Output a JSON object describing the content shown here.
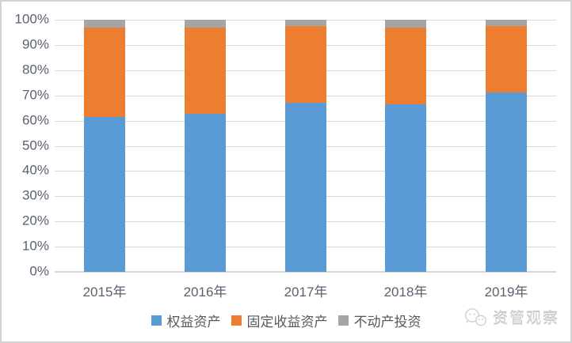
{
  "chart_data": {
    "type": "bar",
    "stacked": true,
    "percent_stacked": true,
    "title": "",
    "xlabel": "",
    "ylabel": "",
    "categories": [
      "2015年",
      "2016年",
      "2017年",
      "2018年",
      "2019年"
    ],
    "series": [
      {
        "name": "权益资产",
        "color": "#5B9BD5",
        "values": [
          61.5,
          62.8,
          67.0,
          66.4,
          71.2
        ]
      },
      {
        "name": "固定收益资产",
        "color": "#ED7D31",
        "values": [
          35.4,
          34.1,
          30.6,
          30.5,
          26.2
        ]
      },
      {
        "name": "不动产投资",
        "color": "#A5A5A5",
        "values": [
          3.1,
          3.1,
          2.4,
          3.1,
          2.6
        ]
      }
    ],
    "ylim": [
      0,
      100
    ],
    "yticks": [
      "0%",
      "10%",
      "20%",
      "30%",
      "40%",
      "50%",
      "60%",
      "70%",
      "80%",
      "90%",
      "100%"
    ],
    "grid": true,
    "legend_position": "bottom"
  },
  "watermark": {
    "label": "资管观察",
    "icon": "wechat-icon"
  },
  "style_colors": {
    "gridline": "#d9d9d9",
    "axis_text": "#5a6170",
    "legend_text": "#595959",
    "frame_border": "#d2d2d2",
    "watermark_text": "#cdd0d4"
  }
}
